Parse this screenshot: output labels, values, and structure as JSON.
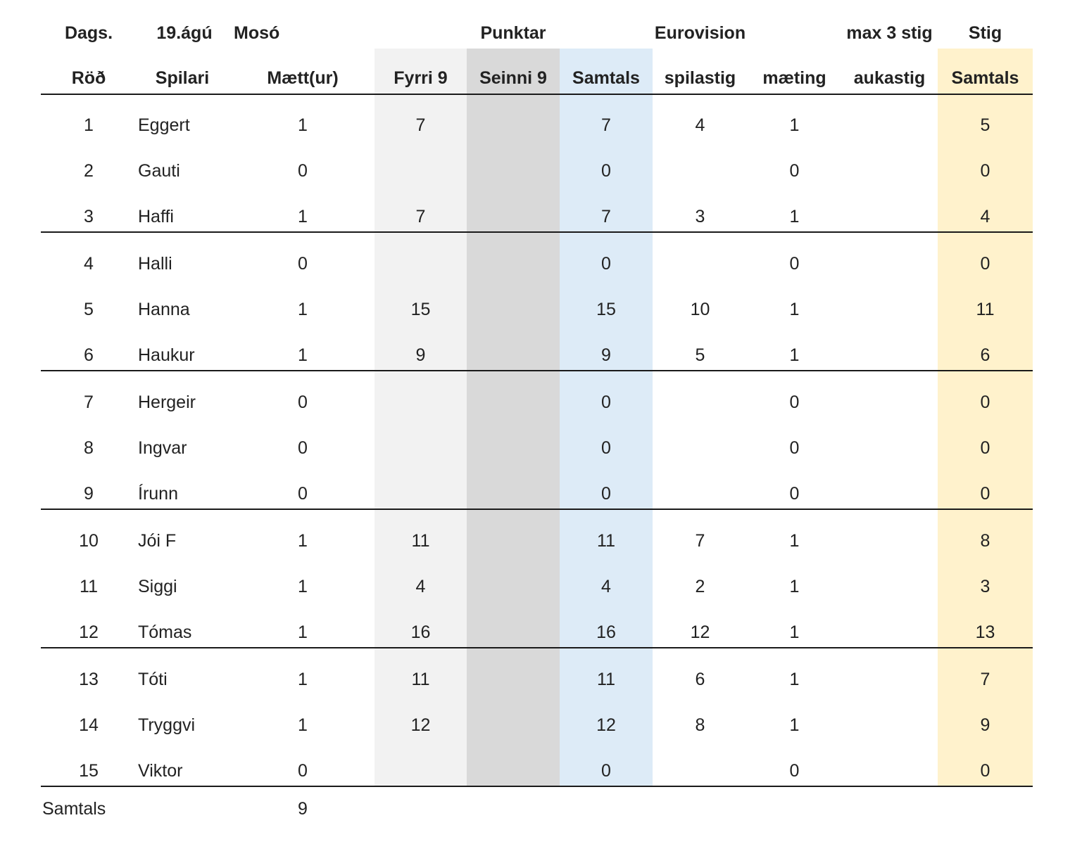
{
  "header_top": {
    "dags_label": "Dags.",
    "date": "19.ágú",
    "location": "Mosó",
    "punktar": "Punktar",
    "eurovision": "Eurovision",
    "max_stig": "max 3 stig",
    "stig": "Stig"
  },
  "columns": {
    "rod": "Röð",
    "spilari": "Spilari",
    "maett": "Mætt(ur)",
    "fyrri": "Fyrri 9",
    "seinni": "Seinni 9",
    "samtals": "Samtals",
    "spilastig": "spilastig",
    "maeting": "mæting",
    "aukastig": "aukastig",
    "stig_samtals": "Samtals"
  },
  "rows": [
    {
      "rod": "1",
      "spilari": "Eggert",
      "maett": "1",
      "fyrri": "7",
      "seinni": "",
      "samtals": "7",
      "spilastig": "4",
      "maeting": "1",
      "aukastig": "",
      "stig": "5"
    },
    {
      "rod": "2",
      "spilari": "Gauti",
      "maett": "0",
      "fyrri": "",
      "seinni": "",
      "samtals": "0",
      "spilastig": "",
      "maeting": "0",
      "aukastig": "",
      "stig": "0"
    },
    {
      "rod": "3",
      "spilari": "Haffi",
      "maett": "1",
      "fyrri": "7",
      "seinni": "",
      "samtals": "7",
      "spilastig": "3",
      "maeting": "1",
      "aukastig": "",
      "stig": "4"
    },
    {
      "rod": "4",
      "spilari": "Halli",
      "maett": "0",
      "fyrri": "",
      "seinni": "",
      "samtals": "0",
      "spilastig": "",
      "maeting": "0",
      "aukastig": "",
      "stig": "0"
    },
    {
      "rod": "5",
      "spilari": "Hanna",
      "maett": "1",
      "fyrri": "15",
      "seinni": "",
      "samtals": "15",
      "spilastig": "10",
      "maeting": "1",
      "aukastig": "",
      "stig": "11"
    },
    {
      "rod": "6",
      "spilari": "Haukur",
      "maett": "1",
      "fyrri": "9",
      "seinni": "",
      "samtals": "9",
      "spilastig": "5",
      "maeting": "1",
      "aukastig": "",
      "stig": "6"
    },
    {
      "rod": "7",
      "spilari": "Hergeir",
      "maett": "0",
      "fyrri": "",
      "seinni": "",
      "samtals": "0",
      "spilastig": "",
      "maeting": "0",
      "aukastig": "",
      "stig": "0"
    },
    {
      "rod": "8",
      "spilari": "Ingvar",
      "maett": "0",
      "fyrri": "",
      "seinni": "",
      "samtals": "0",
      "spilastig": "",
      "maeting": "0",
      "aukastig": "",
      "stig": "0"
    },
    {
      "rod": "9",
      "spilari": "Írunn",
      "maett": "0",
      "fyrri": "",
      "seinni": "",
      "samtals": "0",
      "spilastig": "",
      "maeting": "0",
      "aukastig": "",
      "stig": "0"
    },
    {
      "rod": "10",
      "spilari": "Jói F",
      "maett": "1",
      "fyrri": "11",
      "seinni": "",
      "samtals": "11",
      "spilastig": "7",
      "maeting": "1",
      "aukastig": "",
      "stig": "8"
    },
    {
      "rod": "11",
      "spilari": "Siggi",
      "maett": "1",
      "fyrri": "4",
      "seinni": "",
      "samtals": "4",
      "spilastig": "2",
      "maeting": "1",
      "aukastig": "",
      "stig": "3"
    },
    {
      "rod": "12",
      "spilari": "Tómas",
      "maett": "1",
      "fyrri": "16",
      "seinni": "",
      "samtals": "16",
      "spilastig": "12",
      "maeting": "1",
      "aukastig": "",
      "stig": "13"
    },
    {
      "rod": "13",
      "spilari": "Tóti",
      "maett": "1",
      "fyrri": "11",
      "seinni": "",
      "samtals": "11",
      "spilastig": "6",
      "maeting": "1",
      "aukastig": "",
      "stig": "7"
    },
    {
      "rod": "14",
      "spilari": "Tryggvi",
      "maett": "1",
      "fyrri": "12",
      "seinni": "",
      "samtals": "12",
      "spilastig": "8",
      "maeting": "1",
      "aukastig": "",
      "stig": "9"
    },
    {
      "rod": "15",
      "spilari": "Viktor",
      "maett": "0",
      "fyrri": "",
      "seinni": "",
      "samtals": "0",
      "spilastig": "",
      "maeting": "0",
      "aukastig": "",
      "stig": "0"
    }
  ],
  "footer": {
    "label": "Samtals",
    "maett_total": "9"
  },
  "colors": {
    "fyrri_bg": "#f2f2f2",
    "seinni_bg": "#d9d9d9",
    "samtals_bg": "#ddebf7",
    "stig_bg": "#fff2cc"
  }
}
